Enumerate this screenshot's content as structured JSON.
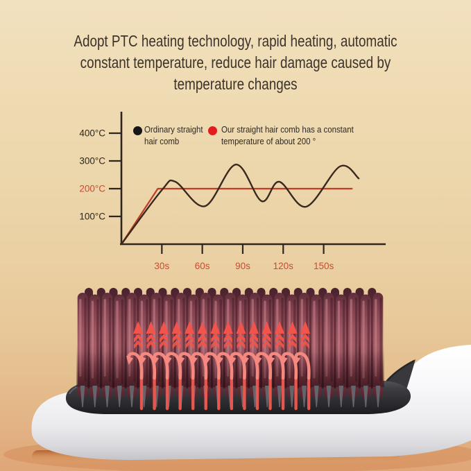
{
  "headline": {
    "lines": [
      "Adopt PTC heating technology, rapid heating, automatic",
      "constant temperature, reduce hair damage caused by",
      "temperature changes"
    ]
  },
  "chart_data": {
    "type": "line",
    "title": "",
    "xlabel": "",
    "ylabel": "",
    "x_unit": "seconds",
    "y_unit": "°C",
    "x_ticks": [
      "30s",
      "60s",
      "90s",
      "120s",
      "150s"
    ],
    "x_tick_values": [
      30,
      60,
      90,
      120,
      150
    ],
    "y_ticks": [
      "100°C",
      "200°C",
      "300°C",
      "400°C"
    ],
    "y_tick_values": [
      100,
      200,
      300,
      400
    ],
    "highlight_y_tick": "200°C",
    "xlim": [
      0,
      180
    ],
    "ylim": [
      0,
      475
    ],
    "grid": false,
    "legend_position": "top-inside",
    "legend": [
      {
        "label": "Ordinary straight hair comb",
        "lines": [
          "Ordinary straight",
          "hair comb"
        ],
        "color": "#161616"
      },
      {
        "label": "Our straight hair comb has a constant temperature of about 200 °",
        "lines": [
          "Our straight hair comb has a constant",
          "temperature of about 200 °"
        ],
        "color": "#e11d1d"
      }
    ],
    "series": [
      {
        "name": "Ordinary straight hair comb",
        "color": "#38291f",
        "smooth": true,
        "x": [
          0,
          30,
          40,
          62,
          85,
          104,
          117,
          137,
          162,
          176
        ],
        "y": [
          0,
          195,
          225,
          137,
          287,
          155,
          225,
          135,
          280,
          237
        ]
      },
      {
        "name": "Our straight hair comb (constant ~200°)",
        "color": "#bf3d26",
        "smooth": false,
        "x": [
          0,
          27,
          171
        ],
        "y": [
          0,
          200,
          200
        ]
      }
    ]
  },
  "colors": {
    "background_top": "#f2e1bf",
    "background_bottom": "#dfa678",
    "headline_text": "#3b332b",
    "axis": "#2d2620",
    "tick_label_red": "#cd4a2f",
    "tick_label_dark": "#2d2620",
    "heat_arrow_red": "#f2544b",
    "airflow_arrow_pink": "#f5897f",
    "bristle_maroon": "#9b5561",
    "brush_plate_dark": "#333338",
    "brush_body_white": "#f6f6f8"
  },
  "product": {
    "name": "heated hair straightening brush",
    "icons": [
      "heat-up-arrow-icon",
      "airflow-curl-arrow-icon"
    ]
  }
}
